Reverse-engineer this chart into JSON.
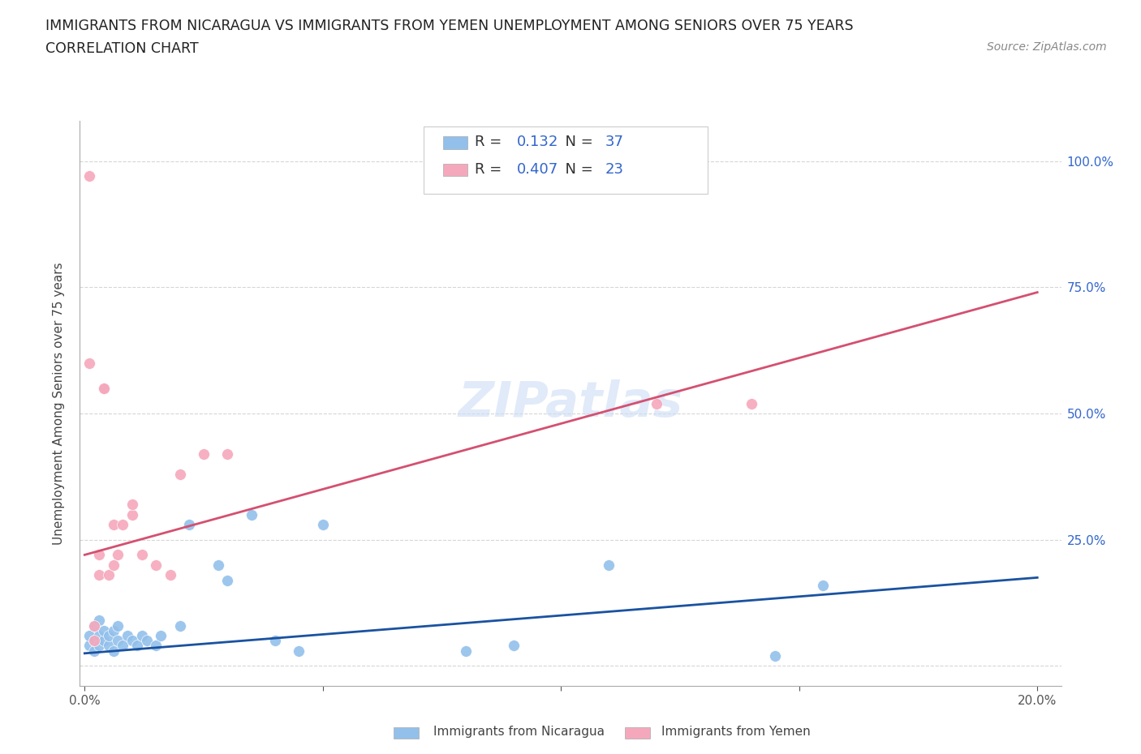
{
  "title_line1": "IMMIGRANTS FROM NICARAGUA VS IMMIGRANTS FROM YEMEN UNEMPLOYMENT AMONG SENIORS OVER 75 YEARS",
  "title_line2": "CORRELATION CHART",
  "source": "Source: ZipAtlas.com",
  "ylabel": "Unemployment Among Seniors over 75 years",
  "xlim": [
    -0.001,
    0.205
  ],
  "ylim": [
    -0.04,
    1.08
  ],
  "yticks": [
    0.0,
    0.25,
    0.5,
    0.75,
    1.0
  ],
  "xticks": [
    0.0,
    0.05,
    0.1,
    0.15,
    0.2
  ],
  "xtick_labels": [
    "0.0%",
    "",
    "",
    "",
    "20.0%"
  ],
  "ytick_labels_right": [
    "",
    "25.0%",
    "50.0%",
    "75.0%",
    "100.0%"
  ],
  "nicaragua_color": "#92c0eb",
  "nicaragua_line_color": "#1a52a0",
  "yemen_color": "#f5a8bc",
  "yemen_line_color": "#d45070",
  "nicaragua_R": 0.132,
  "nicaragua_N": 37,
  "yemen_R": 0.407,
  "yemen_N": 23,
  "watermark": "ZIPatlas",
  "background_color": "#ffffff",
  "legend_label_color": "#333333",
  "legend_value_color": "#3366cc",
  "nicaragua_x": [
    0.001,
    0.001,
    0.002,
    0.002,
    0.002,
    0.003,
    0.003,
    0.003,
    0.004,
    0.004,
    0.005,
    0.005,
    0.006,
    0.006,
    0.007,
    0.007,
    0.008,
    0.009,
    0.01,
    0.011,
    0.012,
    0.013,
    0.015,
    0.016,
    0.02,
    0.022,
    0.028,
    0.03,
    0.035,
    0.04,
    0.045,
    0.05,
    0.08,
    0.09,
    0.11,
    0.145,
    0.155
  ],
  "nicaragua_y": [
    0.04,
    0.06,
    0.03,
    0.05,
    0.08,
    0.04,
    0.06,
    0.09,
    0.05,
    0.07,
    0.04,
    0.06,
    0.03,
    0.07,
    0.05,
    0.08,
    0.04,
    0.06,
    0.05,
    0.04,
    0.06,
    0.05,
    0.04,
    0.06,
    0.08,
    0.28,
    0.2,
    0.17,
    0.3,
    0.05,
    0.03,
    0.28,
    0.03,
    0.04,
    0.2,
    0.02,
    0.16
  ],
  "yemen_x": [
    0.001,
    0.001,
    0.002,
    0.002,
    0.003,
    0.003,
    0.004,
    0.004,
    0.005,
    0.006,
    0.006,
    0.007,
    0.008,
    0.01,
    0.01,
    0.012,
    0.015,
    0.018,
    0.02,
    0.025,
    0.03,
    0.12,
    0.14
  ],
  "yemen_y": [
    0.97,
    0.6,
    0.05,
    0.08,
    0.18,
    0.22,
    0.55,
    0.55,
    0.18,
    0.2,
    0.28,
    0.22,
    0.28,
    0.3,
    0.32,
    0.22,
    0.2,
    0.18,
    0.38,
    0.42,
    0.42,
    0.52,
    0.52
  ],
  "nicaragua_line_x": [
    0.0,
    0.2
  ],
  "nicaragua_line_y": [
    0.025,
    0.175
  ],
  "yemen_line_x": [
    0.0,
    0.2
  ],
  "yemen_line_y": [
    0.22,
    0.74
  ]
}
